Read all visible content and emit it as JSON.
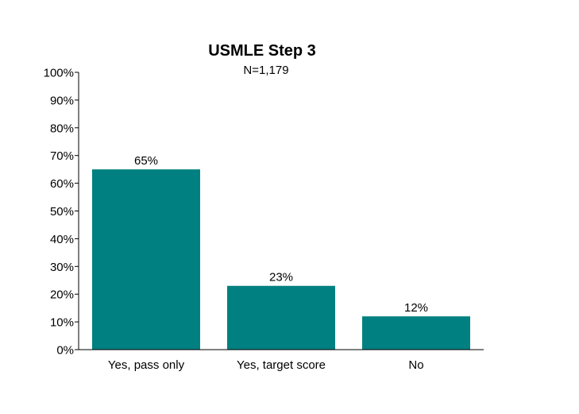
{
  "chart_data": {
    "type": "bar",
    "title": "USMLE Step 3",
    "subtitle": "N=1,179",
    "categories": [
      "Yes, pass only",
      "Yes, target score",
      "No"
    ],
    "values": [
      65,
      23,
      12
    ],
    "data_labels": [
      "65%",
      "23%",
      "12%"
    ],
    "ylim": [
      0,
      100
    ],
    "yticks": [
      0,
      10,
      20,
      30,
      40,
      50,
      60,
      70,
      80,
      90,
      100
    ],
    "ytick_labels": [
      "0%",
      "10%",
      "20%",
      "30%",
      "40%",
      "50%",
      "60%",
      "70%",
      "80%",
      "90%",
      "100%"
    ],
    "xlabel": "",
    "ylabel": "",
    "grid": false,
    "legend": "none",
    "bar_color": "#008080"
  }
}
